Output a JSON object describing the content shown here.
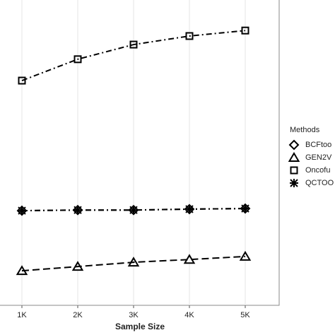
{
  "chart_data": {
    "type": "line",
    "x_label": "Sample Size",
    "categories": [
      "1K",
      "2K",
      "3K",
      "4K",
      "5K"
    ],
    "legend_title": "Methods",
    "ylim": [
      0,
      1
    ],
    "grid": true,
    "series": [
      {
        "name": "BCFtoo",
        "color": "#000000",
        "marker": "diamond",
        "dash": "8,4,2,4",
        "values": [
          0.31,
          0.312,
          0.312,
          0.315,
          0.317
        ]
      },
      {
        "name": "GEN2V",
        "color": "#000000",
        "marker": "triangle",
        "dash": "10,5",
        "values": [
          0.113,
          0.127,
          0.141,
          0.15,
          0.16
        ]
      },
      {
        "name": "Oncofu",
        "color": "#000000",
        "marker": "square",
        "dash": "8,4,2,4",
        "values": [
          0.736,
          0.806,
          0.854,
          0.882,
          0.9
        ]
      },
      {
        "name": "QCTOO",
        "color": "#000000",
        "marker": "star",
        "dash": "8,4,2,4",
        "values": [
          0.31,
          0.312,
          0.312,
          0.315,
          0.317
        ]
      }
    ]
  }
}
